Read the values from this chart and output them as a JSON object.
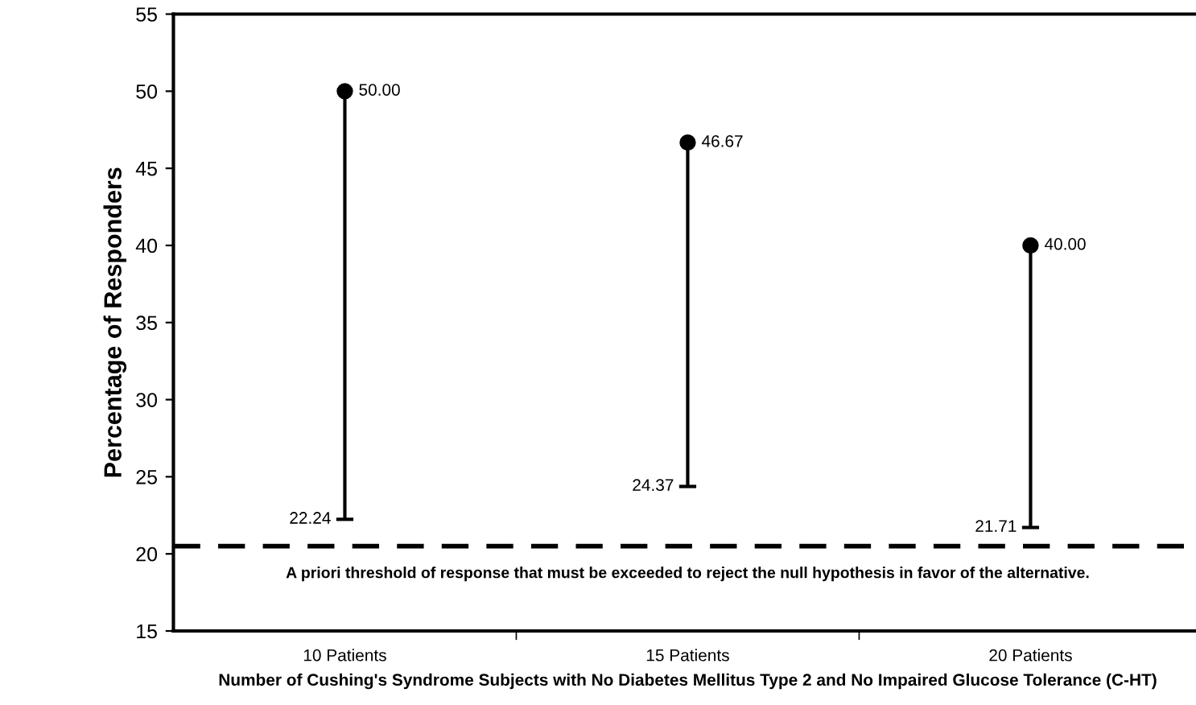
{
  "chart_data": {
    "type": "scatter",
    "ylabel": "Percentage of Responders",
    "xlabel": "Number of Cushing's Syndrome Subjects with No Diabetes Mellitus Type 2 and No Impaired Glucose Tolerance (C-HT)",
    "categories": [
      "10 Patients",
      "15 Patients",
      "20 Patients"
    ],
    "series": [
      {
        "color": "#000000",
        "values": [
          50.0,
          46.67,
          40.0
        ],
        "errors": [
          [
            22.24,
            50.0
          ],
          [
            24.37,
            46.67
          ],
          [
            21.71,
            40.0
          ]
        ],
        "value_labels": [
          "50.00",
          "46.67",
          "40.00"
        ]
      }
    ],
    "annotations": [
      {
        "text": "22.24",
        "x": "10 Patients",
        "y": 22.24
      },
      {
        "text": "24.37",
        "x": "15 Patients",
        "y": 24.37
      },
      {
        "text": "21.71",
        "x": "20 Patients",
        "y": 21.71
      }
    ],
    "ref_lines": [
      {
        "axis": "y",
        "value": 20.5,
        "label": "A priori threshold of response that must be exceeded to reject the null hypothesis in favor of the alternative.",
        "color": "#000000",
        "line_style": "dashed"
      }
    ],
    "ylim": [
      15,
      55
    ],
    "yticks": [
      15,
      20,
      25,
      30,
      35,
      40,
      45,
      50,
      55
    ],
    "marker": "circle",
    "grid": false,
    "legend": false
  }
}
